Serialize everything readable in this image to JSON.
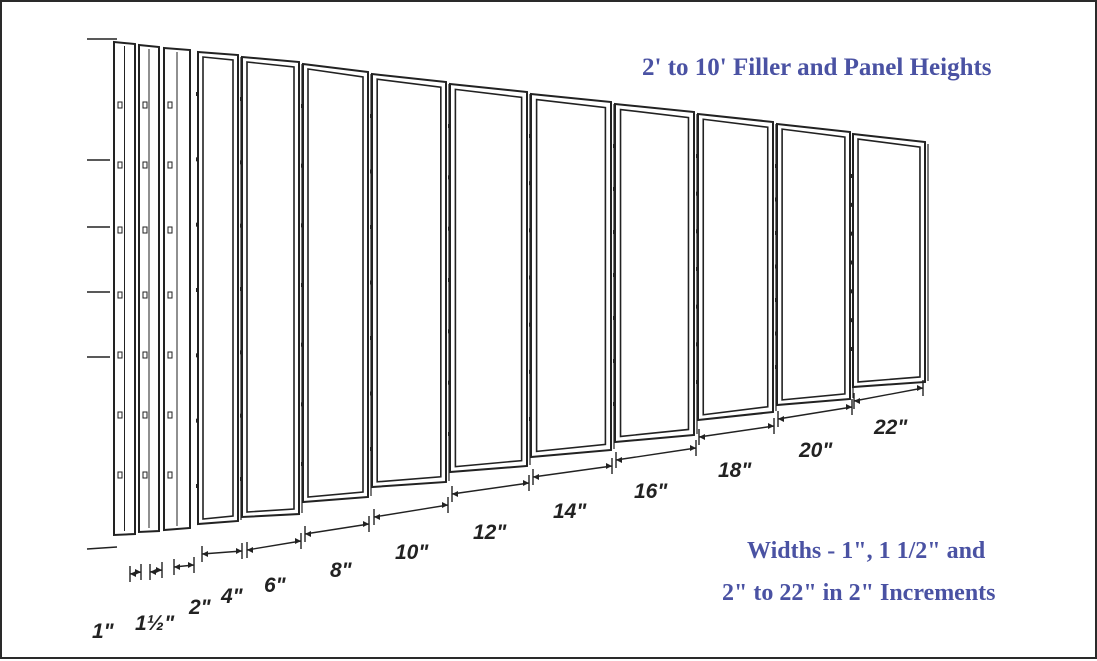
{
  "title": "2' to 10' Filler and Panel Heights",
  "widths_note": {
    "line1": "Widths - 1\", 1 1/2\"  and",
    "line2": "2\" to 22\" in 2\" Increments"
  },
  "colors": {
    "heading": "#4a52a3",
    "ink": "#222222"
  },
  "panels": [
    {
      "label": "1\""
    },
    {
      "label": "1½\""
    },
    {
      "label": "2\""
    },
    {
      "label": "4\""
    },
    {
      "label": "6\""
    },
    {
      "label": "8\""
    },
    {
      "label": "10\""
    },
    {
      "label": "12\""
    },
    {
      "label": "14\""
    },
    {
      "label": "16\""
    },
    {
      "label": "18\""
    },
    {
      "label": "20\""
    },
    {
      "label": "22\""
    }
  ]
}
